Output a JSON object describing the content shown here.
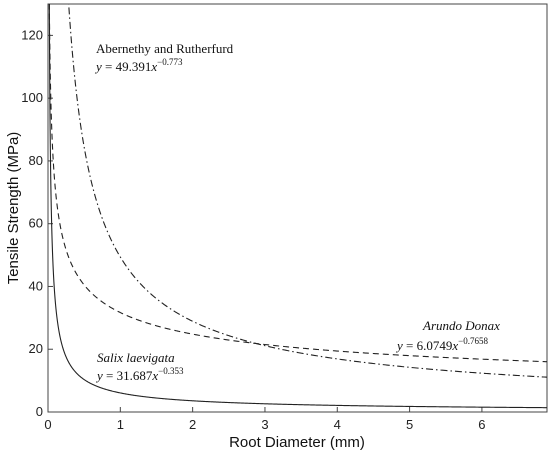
{
  "chart_data": {
    "type": "line",
    "xlabel": "Root Diameter (mm)",
    "ylabel": "Tensile Strength (MPa)",
    "xlim": [
      0,
      6.9
    ],
    "ylim": [
      0,
      130
    ],
    "xticks": [
      0,
      1,
      2,
      3,
      4,
      5,
      6
    ],
    "yticks": [
      0,
      20,
      40,
      60,
      80,
      100,
      120
    ],
    "grid": false,
    "series": [
      {
        "name": "Abernethy and Rutherfurd",
        "equation": "y = 49.391x^{-0.773}",
        "a": 49.391,
        "b": -0.773,
        "style": "dashdot",
        "color": "#222222"
      },
      {
        "name": "Arundo Donax",
        "equation": "y = 6.0749x^{-0.7658}",
        "a": 6.0749,
        "b": -0.7658,
        "style": "solid",
        "color": "#222222"
      },
      {
        "name": "Salix laevigata",
        "equation": "y = 31.687x^{-0.353}",
        "a": 31.687,
        "b": -0.353,
        "style": "dashed",
        "color": "#222222"
      }
    ],
    "annotations": [
      {
        "name": "Abernethy and Rutherfurd",
        "coef": "49.391",
        "exp": "−0.773",
        "italic_name": false
      },
      {
        "name": "Arundo Donax",
        "coef": "6.0749",
        "exp": "−0.7658",
        "italic_name": true
      },
      {
        "name": "Salix laevigata",
        "coef": "31.687",
        "exp": "−0.353",
        "italic_name": true
      }
    ]
  }
}
